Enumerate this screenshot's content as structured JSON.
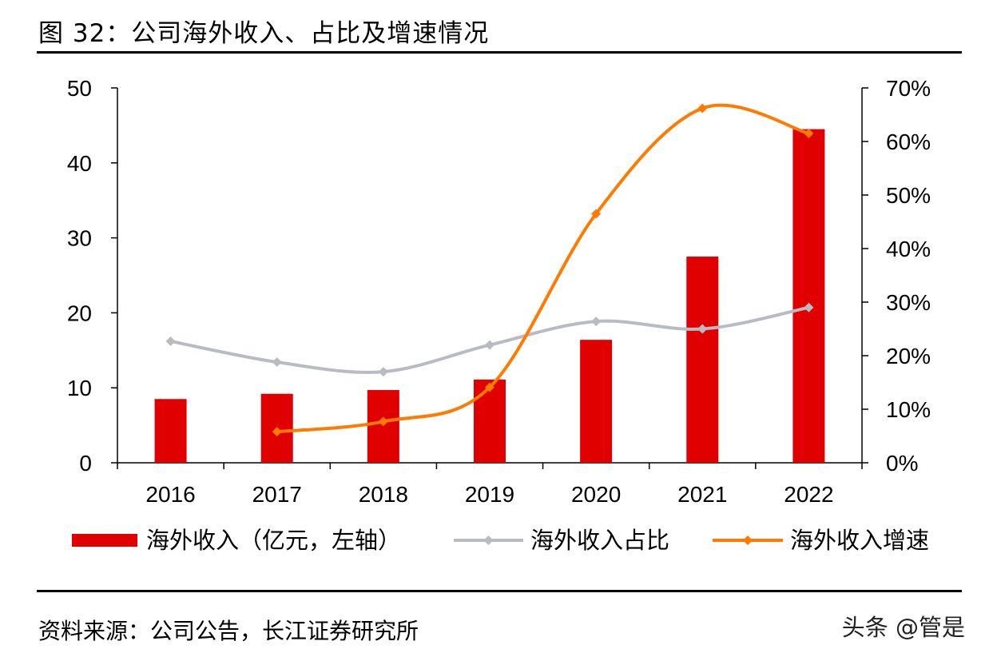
{
  "figure": {
    "title": "图 32：公司海外收入、占比及增速情况",
    "source": "资料来源：公司公告，长江证券研究所",
    "watermark": "头条 @管是"
  },
  "chart_data": {
    "type": "bar",
    "categories": [
      "2016",
      "2017",
      "2018",
      "2019",
      "2020",
      "2021",
      "2022"
    ],
    "series": [
      {
        "name": "海外收入（亿元，左轴）",
        "type": "bar",
        "axis": "left",
        "color": "#e00000",
        "values": [
          8.5,
          9.2,
          9.7,
          11.1,
          16.4,
          27.5,
          44.5
        ]
      },
      {
        "name": "海外收入占比",
        "type": "line",
        "axis": "right",
        "color": "#b8bcc2",
        "values": [
          0.227,
          0.188,
          0.17,
          0.22,
          0.264,
          0.25,
          0.29
        ]
      },
      {
        "name": "海外收入增速",
        "type": "line",
        "axis": "right",
        "color": "#ff7a00",
        "values": [
          null,
          0.058,
          0.077,
          0.141,
          0.465,
          0.662,
          0.615
        ]
      }
    ],
    "y_left": {
      "min": 0,
      "max": 50,
      "ticks": [
        "0",
        "10",
        "20",
        "30",
        "40",
        "50"
      ]
    },
    "y_right": {
      "min": 0,
      "max": 0.7,
      "ticks": [
        "0%",
        "10%",
        "20%",
        "30%",
        "40%",
        "50%",
        "60%",
        "70%"
      ]
    },
    "grid": false,
    "legend": "bottom"
  }
}
